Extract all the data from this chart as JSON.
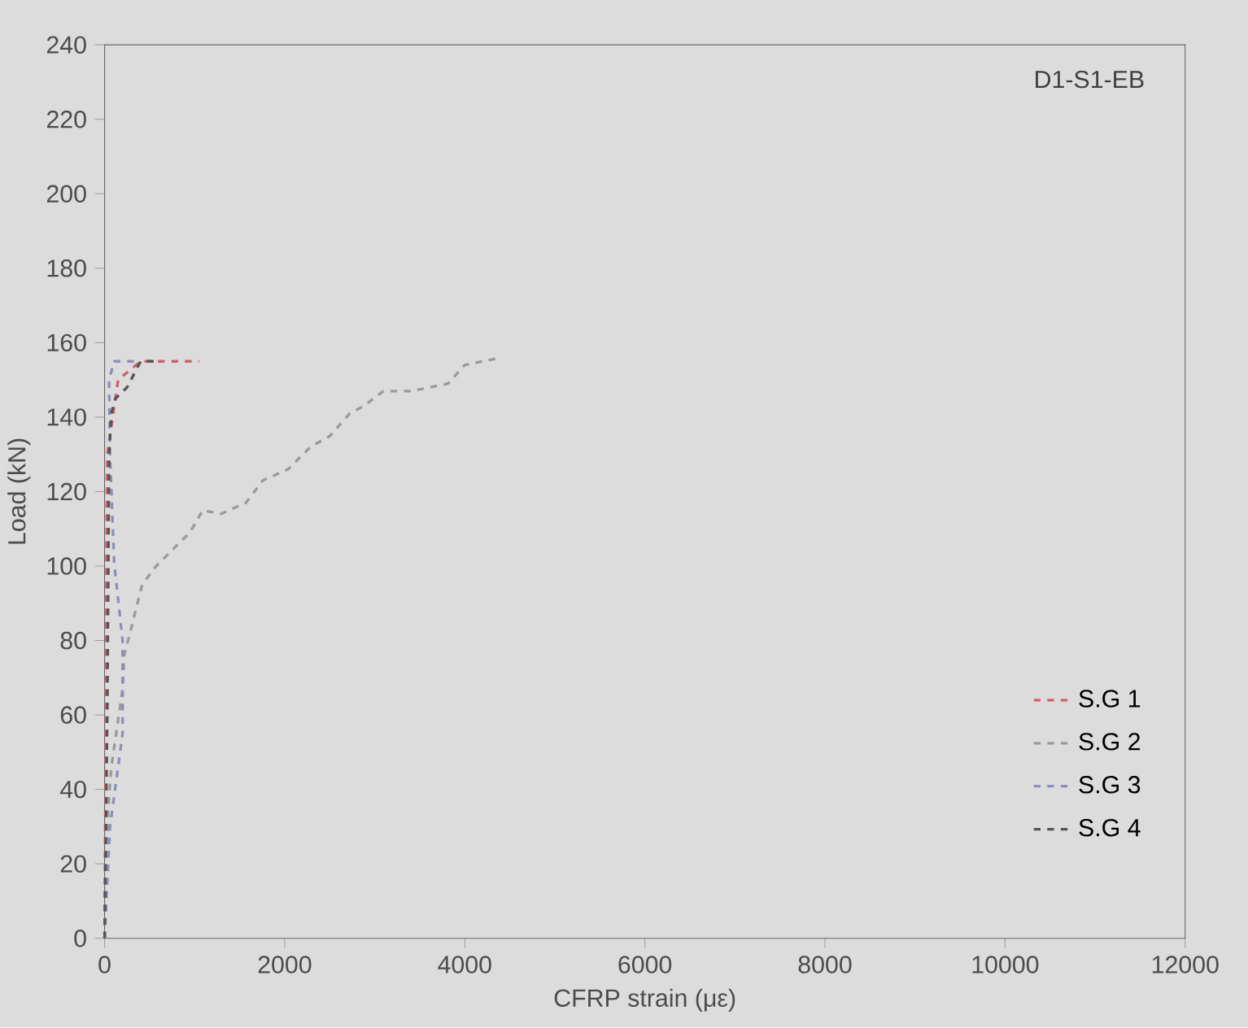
{
  "chart_data": {
    "type": "line",
    "xlabel": "CFRP strain (με)",
    "ylabel": "Load (kN)",
    "annotations": [
      "D1-S1-EB"
    ],
    "xlim": [
      0,
      12000
    ],
    "ylim": [
      0,
      240
    ],
    "xticks": [
      0,
      2000,
      4000,
      6000,
      8000,
      10000,
      12000
    ],
    "yticks": [
      0,
      20,
      40,
      60,
      80,
      100,
      120,
      140,
      160,
      180,
      200,
      220,
      240
    ],
    "grid": false,
    "legend": "bottom right",
    "line_style": "dashed",
    "marker": "none",
    "series": [
      {
        "name": "S.G 1",
        "color": "#d0606a",
        "x": [
          0,
          10,
          20,
          30,
          150,
          400,
          1050
        ],
        "values": [
          0,
          40,
          100,
          130,
          150,
          155,
          155
        ]
      },
      {
        "name": "S.G 2",
        "color": "#9a9a9a",
        "x": [
          0,
          20,
          40,
          75,
          200,
          218,
          324,
          417,
          573,
          947,
          1090,
          1290,
          1570,
          1757,
          2037,
          2287,
          2505,
          2723,
          2879,
          3097,
          3408,
          3813,
          4000,
          4405
        ],
        "values": [
          0,
          20,
          35,
          46,
          67,
          76,
          86,
          95,
          100,
          109,
          115,
          114,
          117,
          123,
          126,
          132,
          135,
          141,
          143,
          147,
          147,
          149,
          154,
          156
        ]
      },
      {
        "name": "S.G 3",
        "color": "#8a90b8",
        "x": [
          0,
          60,
          200,
          200,
          106,
          60,
          50,
          106,
          400
        ],
        "values": [
          0,
          30,
          55,
          80,
          101,
          130,
          150,
          155,
          155
        ]
      },
      {
        "name": "S.G 4",
        "color": "#555555",
        "x": [
          0,
          30,
          50,
          75,
          120,
          250,
          400,
          550
        ],
        "values": [
          0,
          60,
          130,
          141,
          145,
          148,
          155,
          155
        ]
      }
    ]
  }
}
